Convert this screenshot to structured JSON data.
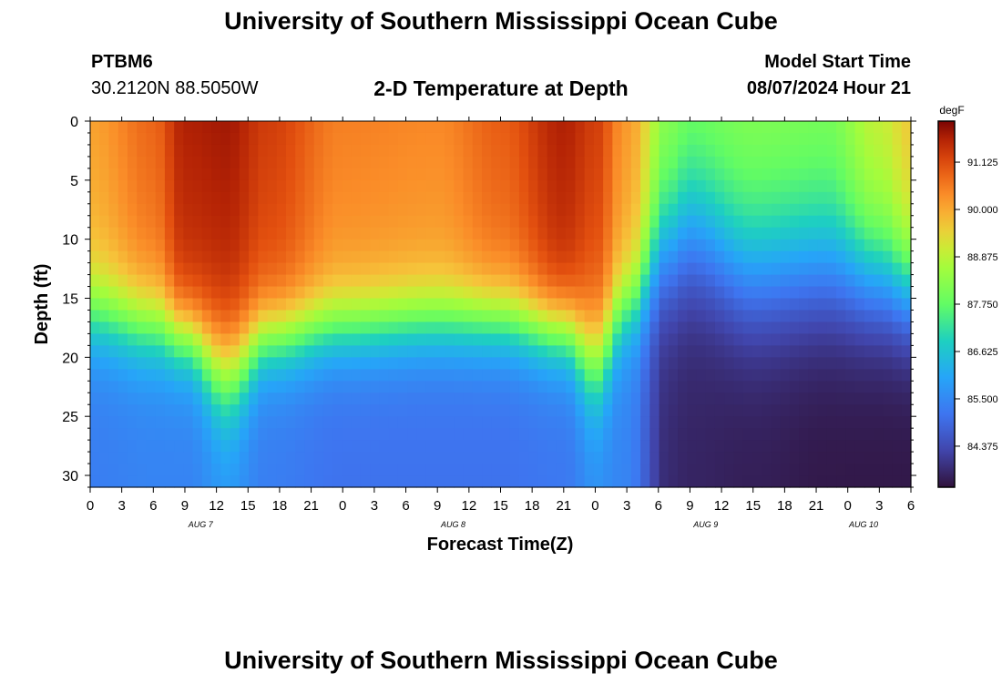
{
  "page": {
    "title": "University of Southern Mississippi Ocean Cube",
    "footer_title": "University of Southern Mississippi Ocean Cube",
    "station": "PTBM6",
    "coordinates": "30.2120N  88.5050W",
    "subtitle": "2-D Temperature at Depth",
    "model_start_label": "Model Start Time",
    "model_start_value": "08/07/2024 Hour 21"
  },
  "chart_data": {
    "type": "heatmap",
    "title": "2-D Temperature at Depth",
    "xlabel": "Forecast Time(Z)",
    "ylabel": "Depth (ft)",
    "units": "degF",
    "x_hours": [
      0,
      3,
      6,
      9,
      12,
      15,
      18,
      21,
      24,
      27,
      30,
      33,
      36,
      39,
      42,
      45,
      48,
      51,
      54,
      57,
      60,
      63,
      66,
      69,
      72,
      75,
      78
    ],
    "x_tick_labels": [
      "0",
      "3",
      "6",
      "9",
      "12",
      "15",
      "18",
      "21",
      "0",
      "3",
      "6",
      "9",
      "12",
      "15",
      "18",
      "21",
      "0",
      "3",
      "6",
      "9",
      "12",
      "15",
      "18",
      "21",
      "0",
      "3",
      "6"
    ],
    "date_labels": [
      {
        "label": "AUG 7",
        "at_tick": 3.5
      },
      {
        "label": "AUG 8",
        "at_tick": 11.5
      },
      {
        "label": "AUG 9",
        "at_tick": 19.5
      },
      {
        "label": "AUG 10",
        "at_tick": 24.5
      }
    ],
    "y_ticks": [
      0,
      5,
      10,
      15,
      20,
      25,
      30
    ],
    "ylim": [
      0,
      31
    ],
    "colorbar": {
      "label": "degF",
      "ticks": [
        "91.125",
        "90.000",
        "88.875",
        "87.750",
        "86.625",
        "85.500",
        "84.375"
      ],
      "range": [
        83.4,
        92.1
      ]
    },
    "profiles": [
      {
        "t": 0,
        "surface": 90.1,
        "bottom": 85.3,
        "thermocline_ft": 16.5,
        "width_ft": 2.2
      },
      {
        "t": 6,
        "surface": 90.8,
        "bottom": 85.4,
        "thermocline_ft": 17.5,
        "width_ft": 2.2
      },
      {
        "t": 9,
        "surface": 91.7,
        "bottom": 85.4,
        "thermocline_ft": 18.5,
        "width_ft": 2.0
      },
      {
        "t": 13,
        "surface": 91.8,
        "bottom": 85.7,
        "thermocline_ft": 21.5,
        "width_ft": 2.6
      },
      {
        "t": 17,
        "surface": 91.3,
        "bottom": 85.3,
        "thermocline_ft": 18.5,
        "width_ft": 2.0
      },
      {
        "t": 24,
        "surface": 90.5,
        "bottom": 85.1,
        "thermocline_ft": 17.5,
        "width_ft": 2.0
      },
      {
        "t": 33,
        "surface": 90.4,
        "bottom": 85.1,
        "thermocline_ft": 17.0,
        "width_ft": 2.0
      },
      {
        "t": 39,
        "surface": 90.9,
        "bottom": 85.1,
        "thermocline_ft": 17.0,
        "width_ft": 2.0
      },
      {
        "t": 45,
        "surface": 91.7,
        "bottom": 85.2,
        "thermocline_ft": 18.0,
        "width_ft": 2.0
      },
      {
        "t": 48,
        "surface": 91.3,
        "bottom": 85.6,
        "thermocline_ft": 20.5,
        "width_ft": 2.6
      },
      {
        "t": 51,
        "surface": 90.2,
        "bottom": 85.4,
        "thermocline_ft": 16.0,
        "width_ft": 2.2
      },
      {
        "t": 55,
        "surface": 88.3,
        "bottom": 83.8,
        "thermocline_ft": 11.0,
        "width_ft": 3.2
      },
      {
        "t": 57,
        "surface": 88.0,
        "bottom": 83.7,
        "thermocline_ft": 10.0,
        "width_ft": 3.4
      },
      {
        "t": 63,
        "surface": 88.2,
        "bottom": 83.6,
        "thermocline_ft": 13.0,
        "width_ft": 3.4
      },
      {
        "t": 70,
        "surface": 88.1,
        "bottom": 83.5,
        "thermocline_ft": 12.5,
        "width_ft": 3.4
      },
      {
        "t": 75,
        "surface": 89.0,
        "bottom": 83.5,
        "thermocline_ft": 13.5,
        "width_ft": 3.0
      },
      {
        "t": 78,
        "surface": 89.6,
        "bottom": 83.5,
        "thermocline_ft": 14.5,
        "width_ft": 2.8
      }
    ]
  }
}
